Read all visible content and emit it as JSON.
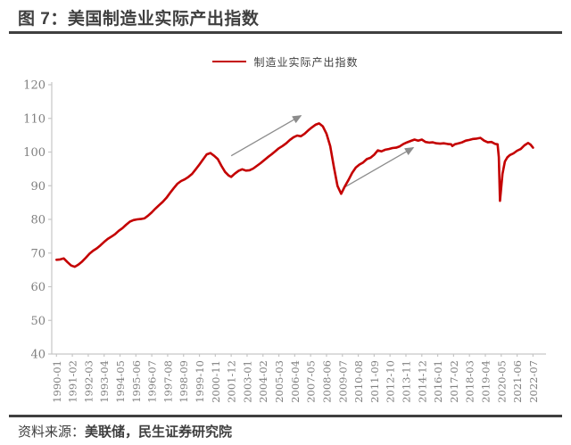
{
  "figure": {
    "title": "图 7：美国制造业实际产出指数",
    "source_label": "资料来源：",
    "source_text": "美联储，民生证券研究院"
  },
  "colors": {
    "series_red": "#c40000",
    "heading_text": "#3f3f3f",
    "divider": "#3f3f3f",
    "axis_line": "#c6c6c6",
    "axis_label": "#7f7f7f",
    "arrow": "#8c8c8c"
  },
  "chart_data": {
    "type": "line",
    "title": "",
    "xlabel": "",
    "ylabel": "",
    "grid": false,
    "legend_position": "top-center",
    "legend": [
      {
        "name": "制造业实际产出指数",
        "color": "#c40000"
      }
    ],
    "ylim": [
      40,
      120
    ],
    "yticks": [
      40,
      50,
      60,
      70,
      80,
      90,
      100,
      110,
      120
    ],
    "x_start": "1990-01",
    "x_end": "2022-07",
    "x_tick_labels": [
      "1990-01",
      "1991-02",
      "1992-03",
      "1993-04",
      "1994-05",
      "1995-06",
      "1996-07",
      "1997-08",
      "1998-09",
      "1999-10",
      "2000-11",
      "2001-12",
      "2003-01",
      "2004-02",
      "2005-03",
      "2006-04",
      "2007-05",
      "2008-06",
      "2009-07",
      "2010-08",
      "2011-09",
      "2012-10",
      "2013-11",
      "2014-12",
      "2016-01",
      "2017-02",
      "2018-03",
      "2019-04",
      "2020-05",
      "2021-06",
      "2022-07"
    ],
    "x_tick_interval_months": 13,
    "series": [
      {
        "name": "制造业实际产出指数",
        "color": "#c40000",
        "points": [
          [
            "1990-01",
            68
          ],
          [
            "1990-04",
            68.1
          ],
          [
            "1990-07",
            68.4
          ],
          [
            "1990-10",
            67.3
          ],
          [
            "1991-01",
            66.3
          ],
          [
            "1991-04",
            65.9
          ],
          [
            "1991-07",
            66.6
          ],
          [
            "1991-10",
            67.5
          ],
          [
            "1992-01",
            68.6
          ],
          [
            "1992-04",
            69.8
          ],
          [
            "1992-07",
            70.7
          ],
          [
            "1992-10",
            71.4
          ],
          [
            "1993-01",
            72.3
          ],
          [
            "1993-04",
            73.3
          ],
          [
            "1993-07",
            74.2
          ],
          [
            "1993-10",
            74.9
          ],
          [
            "1994-01",
            75.6
          ],
          [
            "1994-04",
            76.6
          ],
          [
            "1994-07",
            77.4
          ],
          [
            "1994-10",
            78.4
          ],
          [
            "1995-01",
            79.3
          ],
          [
            "1995-04",
            79.8
          ],
          [
            "1995-07",
            80.0
          ],
          [
            "1995-10",
            80.1
          ],
          [
            "1996-01",
            80.3
          ],
          [
            "1996-04",
            81.1
          ],
          [
            "1996-07",
            82.1
          ],
          [
            "1996-10",
            83.2
          ],
          [
            "1997-01",
            84.2
          ],
          [
            "1997-04",
            85.2
          ],
          [
            "1997-07",
            86.4
          ],
          [
            "1997-10",
            87.9
          ],
          [
            "1998-01",
            89.3
          ],
          [
            "1998-04",
            90.6
          ],
          [
            "1998-07",
            91.4
          ],
          [
            "1998-10",
            91.9
          ],
          [
            "1999-01",
            92.6
          ],
          [
            "1999-04",
            93.5
          ],
          [
            "1999-07",
            94.9
          ],
          [
            "1999-10",
            96.3
          ],
          [
            "2000-01",
            97.8
          ],
          [
            "2000-04",
            99.3
          ],
          [
            "2000-07",
            99.7
          ],
          [
            "2000-10",
            98.9
          ],
          [
            "2001-01",
            97.9
          ],
          [
            "2001-04",
            95.9
          ],
          [
            "2001-07",
            94.1
          ],
          [
            "2001-10",
            93.0
          ],
          [
            "2001-12",
            92.6
          ],
          [
            "2002-03",
            93.6
          ],
          [
            "2002-06",
            94.4
          ],
          [
            "2002-09",
            94.9
          ],
          [
            "2002-12",
            94.5
          ],
          [
            "2003-03",
            94.6
          ],
          [
            "2003-06",
            95.1
          ],
          [
            "2003-09",
            95.9
          ],
          [
            "2003-12",
            96.7
          ],
          [
            "2004-03",
            97.6
          ],
          [
            "2004-06",
            98.5
          ],
          [
            "2004-09",
            99.3
          ],
          [
            "2004-12",
            100.2
          ],
          [
            "2005-03",
            101.1
          ],
          [
            "2005-06",
            101.8
          ],
          [
            "2005-09",
            102.6
          ],
          [
            "2005-12",
            103.6
          ],
          [
            "2006-03",
            104.4
          ],
          [
            "2006-06",
            104.9
          ],
          [
            "2006-09",
            104.7
          ],
          [
            "2006-12",
            105.4
          ],
          [
            "2007-03",
            106.4
          ],
          [
            "2007-06",
            107.3
          ],
          [
            "2007-09",
            108.1
          ],
          [
            "2007-12",
            108.5
          ],
          [
            "2008-03",
            107.6
          ],
          [
            "2008-06",
            105.4
          ],
          [
            "2008-09",
            101.8
          ],
          [
            "2008-12",
            95.6
          ],
          [
            "2009-03",
            89.9
          ],
          [
            "2009-06",
            87.6
          ],
          [
            "2009-09",
            89.8
          ],
          [
            "2009-12",
            91.7
          ],
          [
            "2010-03",
            93.8
          ],
          [
            "2010-06",
            95.4
          ],
          [
            "2010-09",
            96.3
          ],
          [
            "2010-12",
            96.9
          ],
          [
            "2011-03",
            97.9
          ],
          [
            "2011-06",
            98.3
          ],
          [
            "2011-09",
            99.2
          ],
          [
            "2011-12",
            100.5
          ],
          [
            "2012-03",
            100.2
          ],
          [
            "2012-06",
            100.7
          ],
          [
            "2012-09",
            100.9
          ],
          [
            "2012-12",
            101.2
          ],
          [
            "2013-03",
            101.3
          ],
          [
            "2013-06",
            101.7
          ],
          [
            "2013-09",
            102.4
          ],
          [
            "2013-12",
            102.9
          ],
          [
            "2014-03",
            103.3
          ],
          [
            "2014-06",
            103.7
          ],
          [
            "2014-09",
            103.4
          ],
          [
            "2014-12",
            103.7
          ],
          [
            "2015-03",
            103.0
          ],
          [
            "2015-06",
            102.8
          ],
          [
            "2015-09",
            102.9
          ],
          [
            "2015-12",
            102.6
          ],
          [
            "2016-03",
            102.5
          ],
          [
            "2016-06",
            102.6
          ],
          [
            "2016-09",
            102.4
          ],
          [
            "2016-12",
            102.3
          ],
          [
            "2017-01",
            101.8
          ],
          [
            "2017-03",
            102.3
          ],
          [
            "2017-06",
            102.6
          ],
          [
            "2017-09",
            102.9
          ],
          [
            "2017-12",
            103.4
          ],
          [
            "2018-03",
            103.6
          ],
          [
            "2018-06",
            103.9
          ],
          [
            "2018-09",
            104.0
          ],
          [
            "2018-12",
            104.2
          ],
          [
            "2019-03",
            103.4
          ],
          [
            "2019-06",
            102.9
          ],
          [
            "2019-09",
            103.0
          ],
          [
            "2019-12",
            102.4
          ],
          [
            "2020-02",
            102.3
          ],
          [
            "2020-03",
            98.5
          ],
          [
            "2020-04",
            85.5
          ],
          [
            "2020-05",
            89.5
          ],
          [
            "2020-06",
            93.5
          ],
          [
            "2020-08",
            97.2
          ],
          [
            "2020-10",
            98.4
          ],
          [
            "2020-12",
            99.1
          ],
          [
            "2021-03",
            99.6
          ],
          [
            "2021-06",
            100.4
          ],
          [
            "2021-09",
            100.9
          ],
          [
            "2021-12",
            102.0
          ],
          [
            "2022-03",
            102.7
          ],
          [
            "2022-05",
            102.2
          ],
          [
            "2022-07",
            101.3
          ]
        ]
      }
    ],
    "annotations": {
      "arrow_color": "#8c8c8c",
      "arrows": [
        {
          "from": [
            "2001-12",
            98.9
          ],
          "to": [
            "2006-09",
            110.8
          ]
        },
        {
          "from": [
            "2009-08",
            89.4
          ],
          "to": [
            "2014-05",
            101.3
          ]
        }
      ]
    }
  }
}
